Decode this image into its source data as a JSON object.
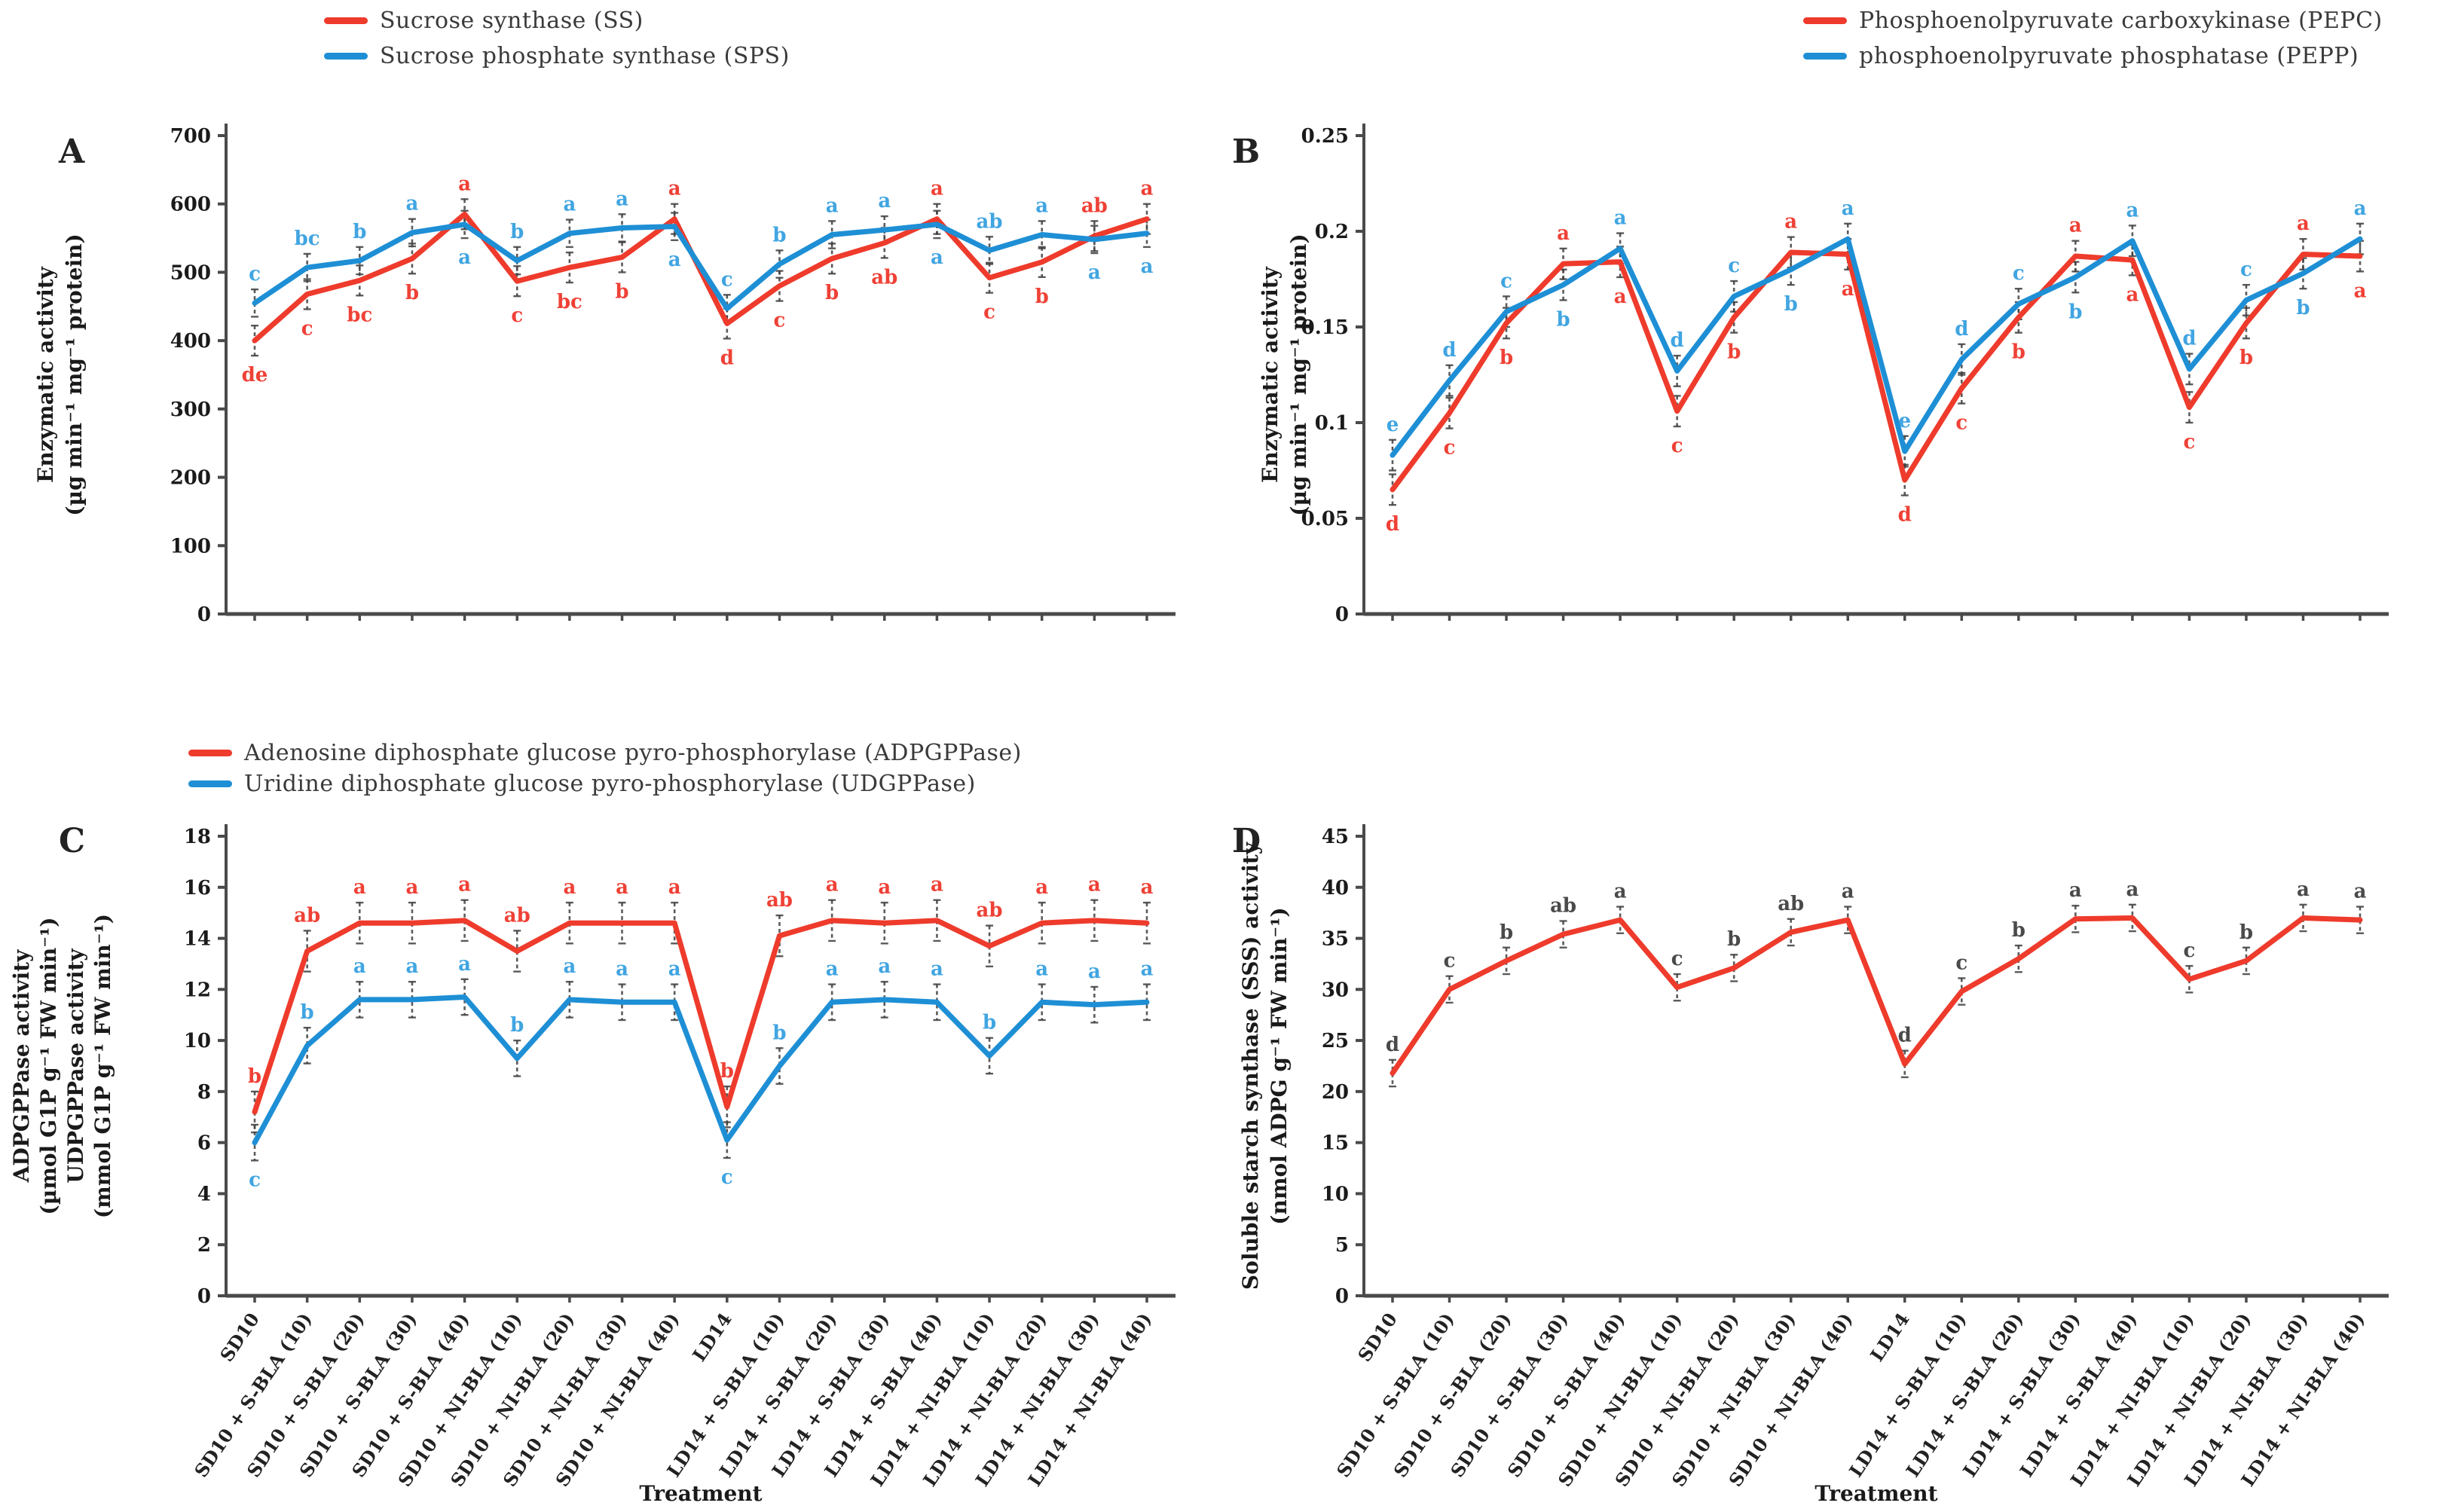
{
  "figure_title": "",
  "x_axis_title": "Treatment",
  "categories": [
    "SD10",
    "SD10 + S-BLA (10)",
    "SD10 + S-BLA (20)",
    "SD10 + S-BLA (30)",
    "SD10 + S-BLA (40)",
    "SD10 + NI-BLA (10)",
    "SD10 + NI-BLA (20)",
    "SD10 + NI-BLA (30)",
    "SD10 + NI-BLA (40)",
    "LD14",
    "LD14 + S-BLA (10)",
    "LD14 + S-BLA (20)",
    "LD14 + S-BLA (30)",
    "LD14 + S-BLA (40)",
    "LD14 + NI-BLA (10)",
    "LD14 + NI-BLA (20)",
    "LD14 + NI-BLA (30)",
    "LD14 + NI-BLA (40)"
  ],
  "chart_data": [
    {
      "type": "line",
      "panel_letter": "A",
      "ylabel_lines": [
        "Enzymatic activity",
        "(µg min⁻¹ mg⁻¹ protein)"
      ],
      "ylim": [
        0,
        700
      ],
      "ytick_step": 100,
      "grid": false,
      "show_x_tick_labels": false,
      "legend_position": "top-center",
      "legend": [
        {
          "label": "Sucrose synthase (SS)",
          "color": "#ee3b2c"
        },
        {
          "label": "Sucrose phosphate synthase (SPS)",
          "color": "#1e8fd5"
        }
      ],
      "series": [
        {
          "name": "Sucrose synthase (SS)",
          "color": "#ee3b2c",
          "letter_color": "#ef4136",
          "err": 22,
          "values": [
            400,
            468,
            488,
            520,
            585,
            487,
            507,
            522,
            578,
            425,
            480,
            520,
            543,
            578,
            492,
            515,
            553,
            578
          ],
          "letters": [
            "de",
            "c",
            "bc",
            "b",
            "a",
            "c",
            "bc",
            "b",
            "a",
            "d",
            "c",
            "b",
            "ab",
            "a",
            "c",
            "b",
            "ab",
            "a"
          ],
          "letter_pos": [
            "below",
            "below",
            "below",
            "below",
            "above",
            "below",
            "below",
            "below",
            "above",
            "below",
            "below",
            "below",
            "below",
            "above",
            "below",
            "below",
            "above",
            "above"
          ]
        },
        {
          "name": "Sucrose phosphate synthase (SPS)",
          "color": "#1e8fd5",
          "letter_color": "#41a5e1",
          "err": 20,
          "values": [
            455,
            507,
            517,
            558,
            570,
            517,
            557,
            565,
            567,
            447,
            512,
            555,
            562,
            570,
            532,
            555,
            548,
            557
          ],
          "letters": [
            "c",
            "bc",
            "b",
            "a",
            "a",
            "b",
            "a",
            "a",
            "a",
            "c",
            "b",
            "a",
            "a",
            "a",
            "ab",
            "a",
            "a",
            "a"
          ],
          "letter_pos": [
            "above",
            "above",
            "above",
            "above",
            "below",
            "above",
            "above",
            "above",
            "below",
            "above",
            "above",
            "above",
            "above",
            "below",
            "above",
            "above",
            "below",
            "below"
          ]
        }
      ]
    },
    {
      "type": "line",
      "panel_letter": "B",
      "ylabel_lines": [
        "Enzymatic activity",
        "(µg min⁻¹ mg⁻¹ protein)"
      ],
      "ylim": [
        0,
        0.25
      ],
      "ytick_step": 0.05,
      "grid": false,
      "show_x_tick_labels": false,
      "legend_position": "top-center",
      "legend": [
        {
          "label": "Phosphoenolpyruvate carboxykinase (PEPC)",
          "color": "#ee3b2c"
        },
        {
          "label": "phosphoenolpyruvate phosphatase (PEPP)",
          "color": "#1e8fd5"
        }
      ],
      "series": [
        {
          "name": "Phosphoenolpyruvate carboxykinase (PEPC)",
          "color": "#ee3b2c",
          "letter_color": "#ef4136",
          "err": 0.008,
          "values": [
            0.065,
            0.105,
            0.152,
            0.183,
            0.184,
            0.106,
            0.155,
            0.189,
            0.188,
            0.07,
            0.118,
            0.155,
            0.187,
            0.185,
            0.108,
            0.152,
            0.188,
            0.187
          ],
          "letters": [
            "d",
            "c",
            "b",
            "a",
            "a",
            "c",
            "b",
            "a",
            "a",
            "d",
            "c",
            "b",
            "a",
            "a",
            "c",
            "b",
            "a",
            "a"
          ],
          "letter_pos": [
            "below",
            "below",
            "below",
            "above",
            "below",
            "below",
            "below",
            "above",
            "below",
            "below",
            "below",
            "below",
            "above",
            "below",
            "below",
            "below",
            "above",
            "below"
          ]
        },
        {
          "name": "phosphoenolpyruvate phosphatase (PEPP)",
          "color": "#1e8fd5",
          "letter_color": "#41a5e1",
          "err": 0.008,
          "values": [
            0.083,
            0.122,
            0.158,
            0.172,
            0.191,
            0.127,
            0.166,
            0.18,
            0.196,
            0.085,
            0.133,
            0.162,
            0.176,
            0.195,
            0.128,
            0.164,
            0.178,
            0.196
          ],
          "letters": [
            "e",
            "d",
            "c",
            "b",
            "a",
            "d",
            "c",
            "b",
            "a",
            "e",
            "d",
            "c",
            "b",
            "a",
            "d",
            "c",
            "b",
            "a"
          ],
          "letter_pos": [
            "above",
            "above",
            "above",
            "below",
            "above",
            "above",
            "above",
            "below",
            "above",
            "above",
            "above",
            "above",
            "below",
            "above",
            "above",
            "above",
            "below",
            "above"
          ]
        }
      ]
    },
    {
      "type": "line",
      "panel_letter": "C",
      "ylabel_lines": [
        "ADPGPPase activity",
        "(µmol G1P g⁻¹ FW min⁻¹)",
        "UDPGPPase activity",
        "(mmol G1P g⁻¹ FW min⁻¹)"
      ],
      "ylim": [
        0,
        18
      ],
      "ytick_step": 2,
      "grid": false,
      "show_x_tick_labels": true,
      "legend_position": "top-center",
      "legend": [
        {
          "label": "Adenosine diphosphate glucose pyro-phosphorylase (ADPGPPase)",
          "color": "#ee3b2c"
        },
        {
          "label": "Uridine diphosphate glucose pyro-phosphorylase (UDGPPase)",
          "color": "#1e8fd5"
        }
      ],
      "series": [
        {
          "name": "ADPGPPase",
          "color": "#ee3b2c",
          "letter_color": "#ef4136",
          "err": 0.8,
          "values": [
            7.2,
            13.5,
            14.6,
            14.6,
            14.7,
            13.5,
            14.6,
            14.6,
            14.6,
            7.4,
            14.1,
            14.7,
            14.6,
            14.7,
            13.7,
            14.6,
            14.7,
            14.6
          ],
          "letters": [
            "b",
            "ab",
            "a",
            "a",
            "a",
            "ab",
            "a",
            "a",
            "a",
            "b",
            "ab",
            "a",
            "a",
            "a",
            "ab",
            "a",
            "a",
            "a"
          ],
          "letter_pos": [
            "above",
            "above",
            "above",
            "above",
            "above",
            "above",
            "above",
            "above",
            "above",
            "above",
            "above",
            "above",
            "above",
            "above",
            "above",
            "above",
            "above",
            "above"
          ]
        },
        {
          "name": "UDGPPase",
          "color": "#1e8fd5",
          "letter_color": "#41a5e1",
          "err": 0.7,
          "values": [
            6.0,
            9.8,
            11.6,
            11.6,
            11.7,
            9.3,
            11.6,
            11.5,
            11.5,
            6.1,
            9.0,
            11.5,
            11.6,
            11.5,
            9.4,
            11.5,
            11.4,
            11.5
          ],
          "letters": [
            "c",
            "b",
            "a",
            "a",
            "a",
            "b",
            "a",
            "a",
            "a",
            "c",
            "b",
            "a",
            "a",
            "a",
            "b",
            "a",
            "a",
            "a"
          ],
          "letter_pos": [
            "below",
            "above",
            "above",
            "above",
            "above",
            "above",
            "above",
            "above",
            "above",
            "below",
            "above",
            "above",
            "above",
            "above",
            "above",
            "above",
            "above",
            "above"
          ]
        }
      ]
    },
    {
      "type": "line",
      "panel_letter": "D",
      "ylabel_lines": [
        "Soluble starch synthase (SSS) activity",
        "(nmol ADPG g⁻¹ FW min⁻¹)"
      ],
      "ylim": [
        0,
        45
      ],
      "ytick_step": 5,
      "grid": false,
      "show_x_tick_labels": true,
      "legend_position": "none",
      "legend": [],
      "series": [
        {
          "name": "Soluble starch synthase (SSS)",
          "color": "#ee3b2c",
          "letter_color": "#4a4a4a",
          "err": 1.3,
          "values": [
            21.8,
            30.0,
            32.8,
            35.4,
            36.8,
            30.2,
            32.1,
            35.6,
            36.8,
            22.7,
            29.8,
            33.0,
            36.9,
            37.0,
            31.0,
            32.8,
            37.0,
            36.8
          ],
          "letters": [
            "d",
            "c",
            "b",
            "ab",
            "a",
            "c",
            "b",
            "ab",
            "a",
            "d",
            "c",
            "b",
            "a",
            "a",
            "c",
            "b",
            "a",
            "a"
          ],
          "letter_pos": [
            "above",
            "above",
            "above",
            "above",
            "above",
            "above",
            "above",
            "above",
            "above",
            "above",
            "above",
            "above",
            "above",
            "above",
            "above",
            "above",
            "above",
            "above"
          ]
        }
      ]
    }
  ]
}
